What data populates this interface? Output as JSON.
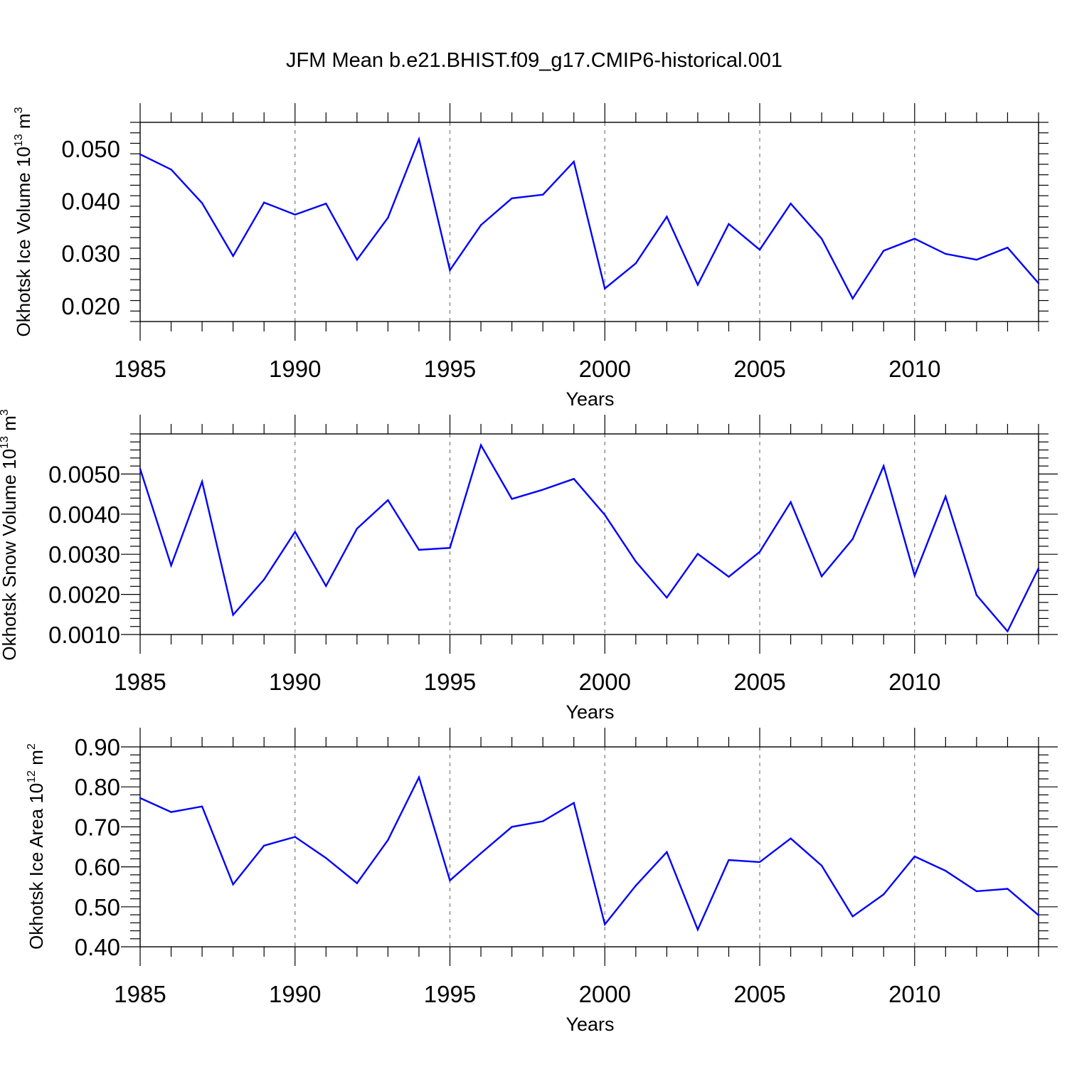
{
  "figure": {
    "title": "JFM Mean b.e21.BHIST.f09_g17.CMIP6-historical.001",
    "line_color": "#0000ff"
  },
  "chart_data": [
    {
      "type": "line",
      "title": "",
      "ylabel": {
        "text": "Okhotsk Ice Volume 10",
        "exp": "13",
        "unit": " m",
        "unit_exp": "3"
      },
      "xlabel": "Years",
      "xlim": [
        1985,
        2014
      ],
      "ylim": [
        0.017,
        0.055
      ],
      "xticks": [
        1985,
        1990,
        1995,
        2000,
        2005,
        2010
      ],
      "xtick_labels": [
        "1985",
        "1990",
        "1995",
        "2000",
        "2005",
        "2010"
      ],
      "yticks": [
        0.02,
        0.03,
        0.04,
        0.05
      ],
      "ytick_labels": [
        "0.020",
        "0.030",
        "0.040",
        "0.050"
      ],
      "grid": "dashed vertical at major x ticks",
      "series": [
        {
          "name": "Okhotsk Ice Volume",
          "x": [
            1985,
            1986,
            1987,
            1988,
            1989,
            1990,
            1991,
            1992,
            1993,
            1994,
            1995,
            1996,
            1997,
            1998,
            1999,
            2000,
            2001,
            2002,
            2003,
            2004,
            2005,
            2006,
            2007,
            2008,
            2009,
            2010,
            2011,
            2012,
            2013,
            2014
          ],
          "values": [
            0.0489,
            0.046,
            0.0396,
            0.0295,
            0.0397,
            0.0374,
            0.0395,
            0.0288,
            0.0368,
            0.0518,
            0.0268,
            0.0354,
            0.0405,
            0.0412,
            0.0475,
            0.0233,
            0.0281,
            0.037,
            0.024,
            0.0356,
            0.0307,
            0.0395,
            0.0328,
            0.0214,
            0.0305,
            0.0328,
            0.0299,
            0.0288,
            0.0311,
            0.0243
          ]
        }
      ]
    },
    {
      "type": "line",
      "title": "",
      "ylabel": {
        "text": "Okhotsk Snow Volume 10",
        "exp": "13",
        "unit": " m",
        "unit_exp": "3"
      },
      "xlabel": "Years",
      "xlim": [
        1985,
        2014
      ],
      "ylim": [
        0.001,
        0.006
      ],
      "xticks": [
        1985,
        1990,
        1995,
        2000,
        2005,
        2010
      ],
      "xtick_labels": [
        "1985",
        "1990",
        "1995",
        "2000",
        "2005",
        "2010"
      ],
      "yticks": [
        0.001,
        0.002,
        0.003,
        0.004,
        0.005
      ],
      "ytick_labels": [
        "0.0010",
        "0.0020",
        "0.0030",
        "0.0040",
        "0.0050"
      ],
      "grid": "dashed vertical at major x ticks",
      "series": [
        {
          "name": "Okhotsk Snow Volume",
          "x": [
            1985,
            1986,
            1987,
            1988,
            1989,
            1990,
            1991,
            1992,
            1993,
            1994,
            1995,
            1996,
            1997,
            1998,
            1999,
            2000,
            2001,
            2002,
            2003,
            2004,
            2005,
            2006,
            2007,
            2008,
            2009,
            2010,
            2011,
            2012,
            2013,
            2014
          ],
          "values": [
            0.00513,
            0.00272,
            0.00481,
            0.00149,
            0.00237,
            0.00356,
            0.00221,
            0.00364,
            0.00435,
            0.00311,
            0.00316,
            0.00572,
            0.00438,
            0.00461,
            0.00488,
            0.00398,
            0.00282,
            0.00192,
            0.00301,
            0.00244,
            0.00306,
            0.0043,
            0.00245,
            0.00338,
            0.0052,
            0.00247,
            0.00444,
            0.00198,
            0.00108,
            0.00265
          ]
        }
      ]
    },
    {
      "type": "line",
      "title": "",
      "ylabel": {
        "text": "Okhotsk Ice Area 10",
        "exp": "12",
        "unit": " m",
        "unit_exp": "2"
      },
      "xlabel": "Years",
      "xlim": [
        1985,
        2014
      ],
      "ylim": [
        0.4,
        0.9
      ],
      "xticks": [
        1985,
        1990,
        1995,
        2000,
        2005,
        2010
      ],
      "xtick_labels": [
        "1985",
        "1990",
        "1995",
        "2000",
        "2005",
        "2010"
      ],
      "yticks": [
        0.4,
        0.5,
        0.6,
        0.7,
        0.8,
        0.9
      ],
      "ytick_labels": [
        "0.40",
        "0.50",
        "0.60",
        "0.70",
        "0.80",
        "0.90"
      ],
      "grid": "dashed vertical at major x ticks",
      "series": [
        {
          "name": "Okhotsk Ice Area",
          "x": [
            1985,
            1986,
            1987,
            1988,
            1989,
            1990,
            1991,
            1992,
            1993,
            1994,
            1995,
            1996,
            1997,
            1998,
            1999,
            2000,
            2001,
            2002,
            2003,
            2004,
            2005,
            2006,
            2007,
            2008,
            2009,
            2010,
            2011,
            2012,
            2013,
            2014
          ],
          "values": [
            0.772,
            0.737,
            0.751,
            0.556,
            0.653,
            0.675,
            0.622,
            0.559,
            0.667,
            0.824,
            0.566,
            0.634,
            0.7,
            0.714,
            0.76,
            0.456,
            0.553,
            0.637,
            0.443,
            0.617,
            0.612,
            0.671,
            0.603,
            0.476,
            0.531,
            0.626,
            0.59,
            0.539,
            0.545,
            0.479
          ]
        }
      ]
    }
  ]
}
